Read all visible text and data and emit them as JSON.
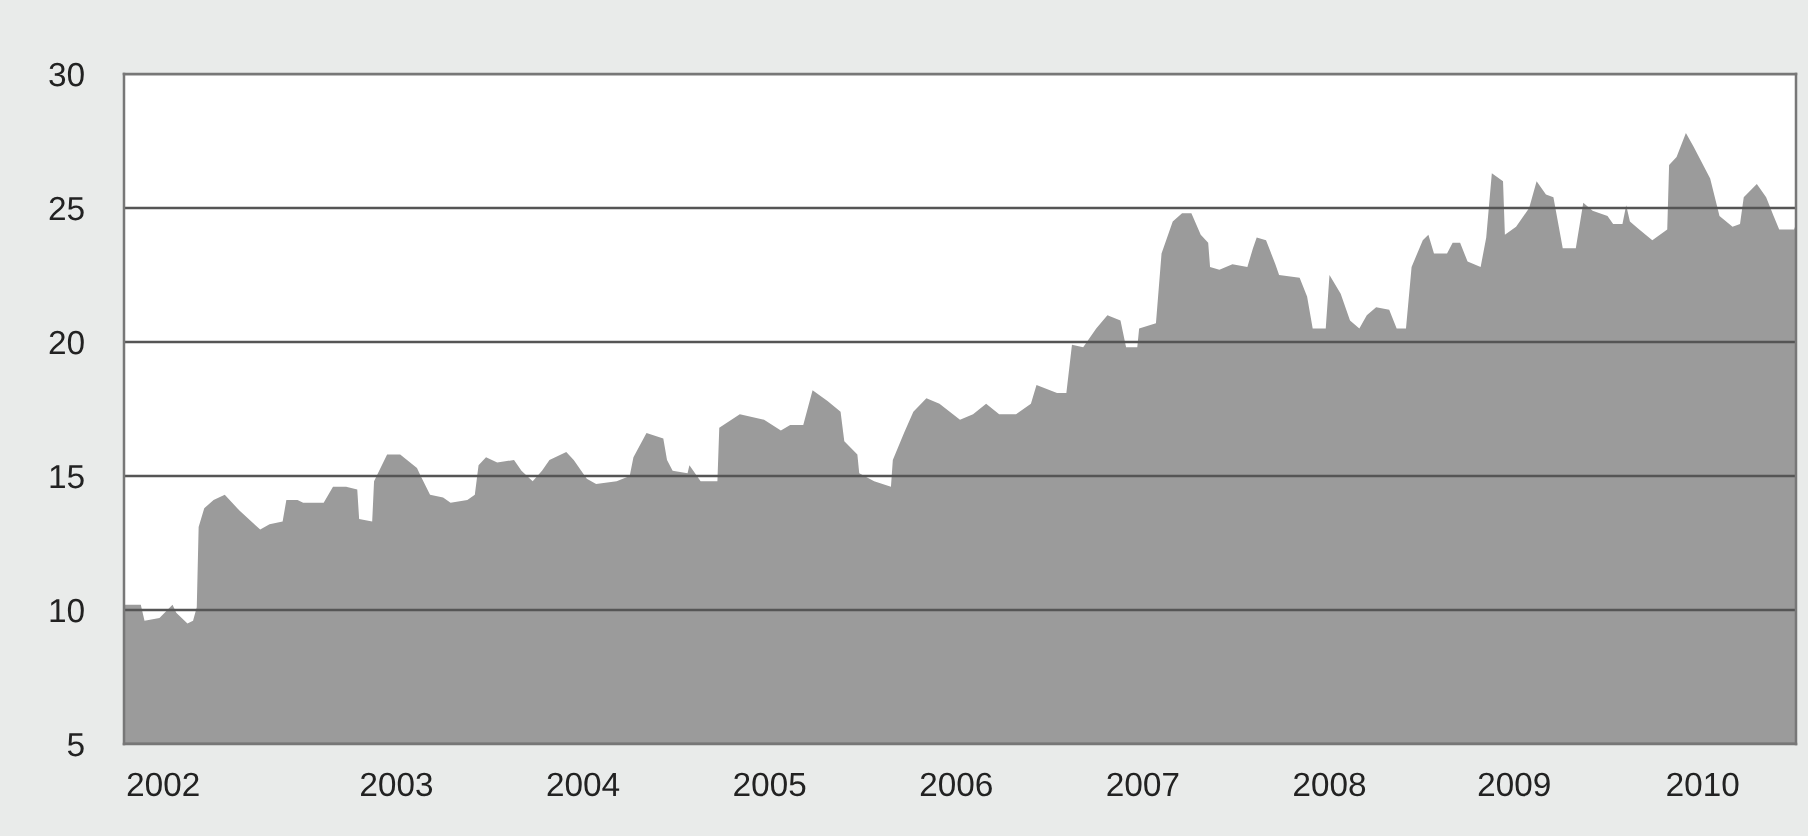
{
  "chart_data": {
    "type": "area",
    "x": [
      2002.03,
      2002.12,
      2002.14,
      2002.22,
      2002.29,
      2002.31,
      2002.37,
      2002.4,
      2002.42,
      2002.43,
      2002.46,
      2002.51,
      2002.57,
      2002.65,
      2002.76,
      2002.81,
      2002.88,
      2002.9,
      2002.96,
      2002.99,
      2003.1,
      2003.15,
      2003.22,
      2003.28,
      2003.29,
      2003.36,
      2003.37,
      2003.44,
      2003.51,
      2003.6,
      2003.62,
      2003.67,
      2003.74,
      2003.78,
      2003.87,
      2003.91,
      2003.93,
      2003.97,
      2004.03,
      2004.12,
      2004.16,
      2004.22,
      2004.27,
      2004.31,
      2004.4,
      2004.44,
      2004.51,
      2004.56,
      2004.67,
      2004.74,
      2004.76,
      2004.83,
      2004.92,
      2004.94,
      2004.97,
      2005.05,
      2005.06,
      2005.12,
      2005.21,
      2005.22,
      2005.33,
      2005.46,
      2005.55,
      2005.6,
      2005.67,
      2005.72,
      2005.8,
      2005.87,
      2005.89,
      2005.96,
      2005.97,
      2006.05,
      2006.14,
      2006.15,
      2006.21,
      2006.26,
      2006.33,
      2006.4,
      2006.51,
      2006.58,
      2006.65,
      2006.72,
      2006.81,
      2006.89,
      2006.92,
      2007.03,
      2007.08,
      2007.11,
      2007.17,
      2007.24,
      2007.3,
      2007.37,
      2007.4,
      2007.46,
      2007.47,
      2007.56,
      2007.59,
      2007.65,
      2007.7,
      2007.75,
      2007.8,
      2007.84,
      2007.85,
      2007.9,
      2007.97,
      2008.05,
      2008.08,
      2008.1,
      2008.15,
      2008.2,
      2008.22,
      2008.33,
      2008.37,
      2008.4,
      2008.47,
      2008.49,
      2008.55,
      2008.6,
      2008.65,
      2008.69,
      2008.74,
      2008.81,
      2008.85,
      2008.9,
      2008.93,
      2008.99,
      2009.02,
      2009.05,
      2009.12,
      2009.15,
      2009.19,
      2009.23,
      2009.3,
      2009.33,
      2009.36,
      2009.42,
      2009.43,
      2009.49,
      2009.56,
      2009.6,
      2009.65,
      2009.69,
      2009.74,
      2009.81,
      2009.85,
      2009.9,
      2009.98,
      2010.01,
      2010.06,
      2010.08,
      2010.1,
      2010.15,
      2010.22,
      2010.3,
      2010.31,
      2010.35,
      2010.4,
      2010.44,
      2010.53,
      2010.58,
      2010.65,
      2010.69,
      2010.71,
      2010.78,
      2010.83,
      2010.87,
      2010.9,
      2010.98,
      2010.99
    ],
    "values": [
      10.2,
      10.2,
      9.6,
      9.7,
      10.2,
      9.9,
      9.5,
      9.6,
      10.1,
      13.1,
      13.8,
      14.1,
      14.3,
      13.7,
      13.0,
      13.2,
      13.3,
      14.1,
      14.1,
      14.0,
      14.0,
      14.6,
      14.6,
      14.5,
      13.4,
      13.3,
      14.8,
      15.8,
      15.8,
      15.3,
      15.0,
      14.3,
      14.2,
      14.0,
      14.1,
      14.3,
      15.4,
      15.7,
      15.5,
      15.6,
      15.2,
      14.8,
      15.2,
      15.6,
      15.9,
      15.6,
      14.9,
      14.7,
      14.8,
      15.0,
      15.7,
      16.6,
      16.4,
      15.6,
      15.2,
      15.1,
      15.4,
      14.8,
      14.8,
      16.8,
      17.3,
      17.1,
      16.7,
      16.9,
      16.9,
      18.2,
      17.8,
      17.4,
      16.3,
      15.8,
      15.1,
      14.8,
      14.6,
      15.6,
      16.6,
      17.4,
      17.9,
      17.7,
      17.1,
      17.3,
      17.7,
      17.3,
      17.3,
      17.7,
      18.4,
      18.1,
      18.1,
      19.9,
      19.8,
      20.5,
      21.0,
      20.8,
      19.8,
      19.8,
      20.5,
      20.7,
      23.3,
      24.5,
      24.8,
      24.8,
      24.0,
      23.7,
      22.8,
      22.7,
      22.9,
      22.8,
      23.5,
      23.9,
      23.8,
      22.9,
      22.5,
      22.4,
      21.7,
      20.5,
      20.5,
      22.5,
      21.8,
      20.8,
      20.5,
      21.0,
      21.3,
      21.2,
      20.5,
      20.5,
      22.8,
      23.8,
      24.0,
      23.3,
      23.3,
      23.7,
      23.7,
      23.0,
      22.8,
      23.9,
      26.3,
      26.0,
      24.0,
      24.3,
      25.0,
      26.0,
      25.5,
      25.4,
      23.5,
      23.5,
      25.2,
      24.9,
      24.7,
      24.4,
      24.4,
      25.1,
      24.5,
      24.2,
      23.8,
      24.2,
      26.6,
      26.9,
      27.8,
      27.3,
      26.1,
      24.7,
      24.3,
      24.4,
      25.4,
      25.9,
      25.4,
      24.7,
      24.2,
      24.2,
      24.4
    ],
    "color": "#9b9b9b",
    "xlim": [
      2002.03,
      2010.99
    ],
    "xticks": [
      {
        "value": 2002.24,
        "label": "2002"
      },
      {
        "value": 2003.49,
        "label": "2003"
      },
      {
        "value": 2004.49,
        "label": "2004"
      },
      {
        "value": 2005.49,
        "label": "2005"
      },
      {
        "value": 2006.49,
        "label": "2006"
      },
      {
        "value": 2007.49,
        "label": "2007"
      },
      {
        "value": 2008.49,
        "label": "2008"
      },
      {
        "value": 2009.48,
        "label": "2009"
      },
      {
        "value": 2010.49,
        "label": "2010"
      }
    ],
    "ylim": [
      5,
      30
    ],
    "yticks": [
      5,
      10,
      15,
      20,
      25,
      30
    ],
    "grid": "y"
  }
}
